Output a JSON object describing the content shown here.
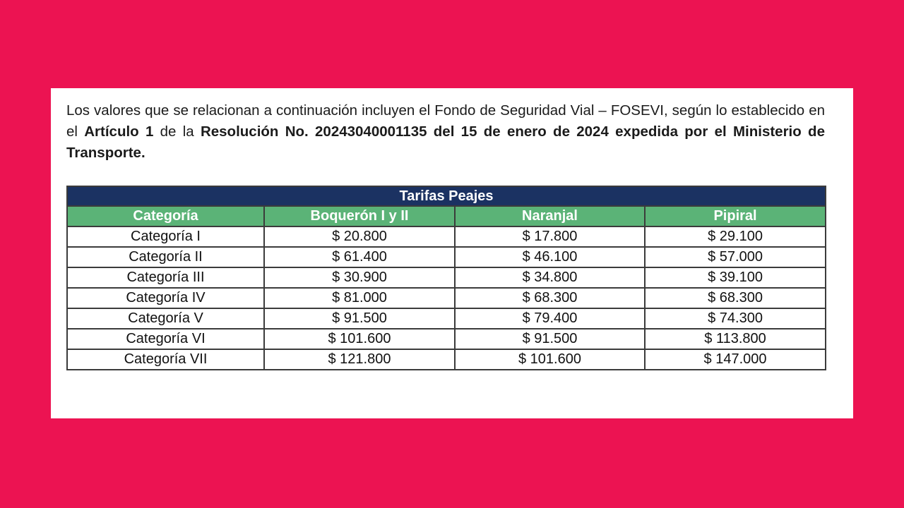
{
  "colors": {
    "background_pink": "#EC1352",
    "card_white": "#FFFFFF",
    "table_title_navy": "#1B3262",
    "table_header_green": "#5BB377",
    "table_border": "#3b3b3b"
  },
  "intro": {
    "segments": [
      {
        "text": "Los valores que se relacionan a continuación incluyen el Fondo de Seguridad Vial – FOSEVI, según lo establecido en el ",
        "bold": false
      },
      {
        "text": "Artículo 1",
        "bold": true
      },
      {
        "text": " de la ",
        "bold": false
      },
      {
        "text": "Resolución No. 20243040001135 del 15 de enero de 2024 expedida por el Ministerio de Transporte.",
        "bold": true
      }
    ]
  },
  "table": {
    "title": "Tarifas Peajes",
    "columns": [
      "Categoría",
      "Boquerón I y II",
      "Naranjal",
      "Pipiral"
    ],
    "rows": [
      {
        "category": "Categoría I",
        "values": [
          "$ 20.800",
          "$ 17.800",
          "$ 29.100"
        ]
      },
      {
        "category": "Categoría II",
        "values": [
          "$ 61.400",
          "$ 46.100",
          "$ 57.000"
        ]
      },
      {
        "category": "Categoría III",
        "values": [
          "$ 30.900",
          "$ 34.800",
          "$ 39.100"
        ]
      },
      {
        "category": "Categoría IV",
        "values": [
          "$ 81.000",
          "$ 68.300",
          "$ 68.300"
        ]
      },
      {
        "category": "Categoría V",
        "values": [
          "$ 91.500",
          "$ 79.400",
          "$ 74.300"
        ]
      },
      {
        "category": "Categoría VI",
        "values": [
          "$ 101.600",
          "$ 91.500",
          "$ 113.800"
        ]
      },
      {
        "category": "Categoría VII",
        "values": [
          "$ 121.800",
          "$ 101.600",
          "$ 147.000"
        ]
      }
    ]
  }
}
